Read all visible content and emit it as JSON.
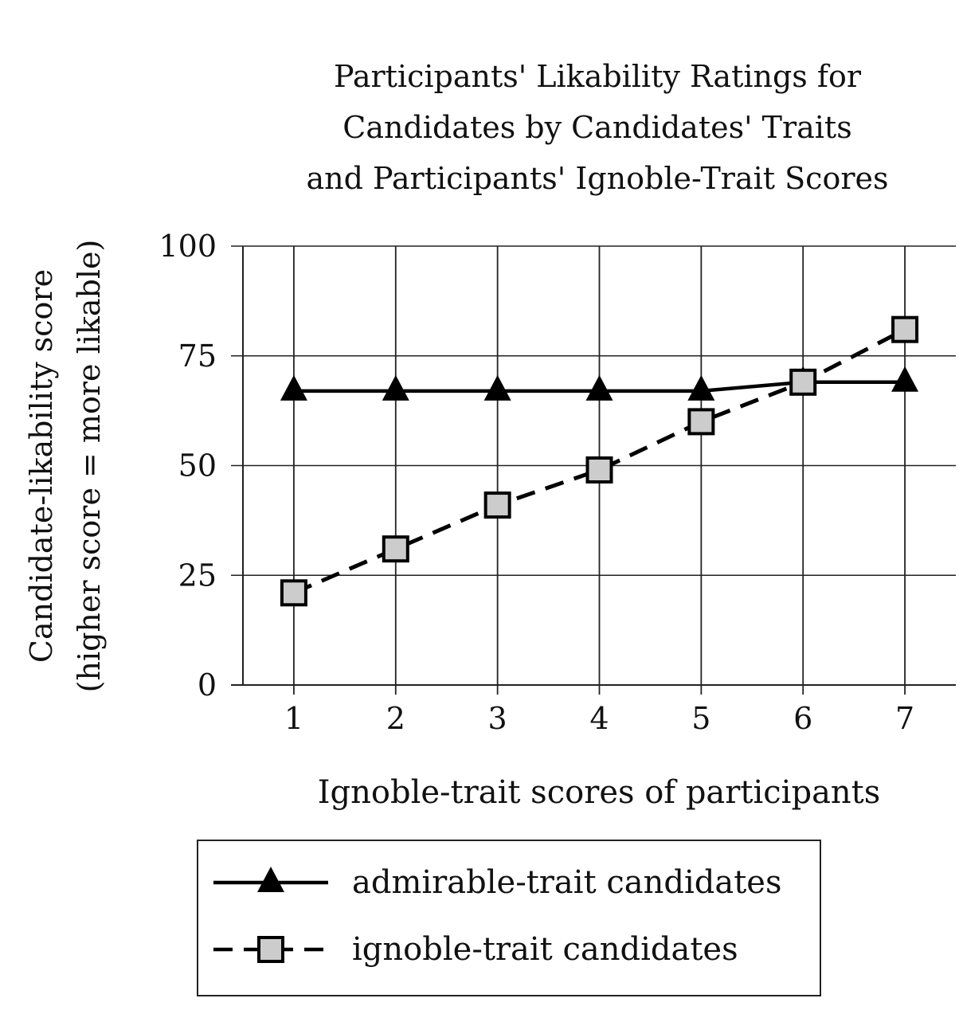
{
  "chart_data": {
    "type": "line",
    "title": [
      "Participants' Likability Ratings for",
      "Candidates by Candidates' Traits",
      "and Participants' Ignoble-Trait Scores"
    ],
    "xlabel": "Ignoble-trait scores of participants",
    "ylabel": [
      "Candidate-likability score",
      "(higher score = more likable)"
    ],
    "x": [
      1,
      2,
      3,
      4,
      5,
      6,
      7
    ],
    "xlim": [
      0.5,
      7.5
    ],
    "ylim": [
      0,
      100
    ],
    "yticks": [
      0,
      25,
      50,
      75,
      100
    ],
    "grid": true,
    "legend_position": "bottom",
    "series": [
      {
        "name": "admirable-trait candidates",
        "values": [
          67,
          67,
          67,
          67,
          67,
          69,
          69
        ],
        "marker": "triangle",
        "line": "solid",
        "color": "#000000"
      },
      {
        "name": "ignoble-trait candidates",
        "values": [
          21,
          31,
          41,
          49,
          60,
          69,
          81
        ],
        "marker": "square",
        "line": "dashed",
        "color": "#000000",
        "marker_fill": "#cccccc"
      }
    ]
  }
}
